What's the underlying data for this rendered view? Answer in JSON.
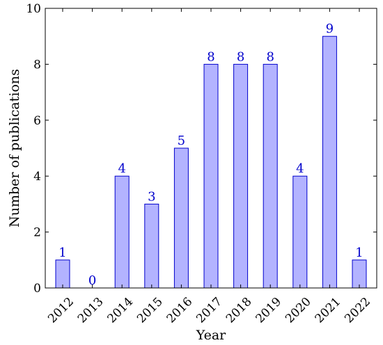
{
  "chart_data": {
    "type": "bar",
    "categories": [
      "2012",
      "2013",
      "2014",
      "2015",
      "2016",
      "2017",
      "2018",
      "2019",
      "2020",
      "2021",
      "2022"
    ],
    "values": [
      1,
      0,
      4,
      3,
      5,
      8,
      8,
      8,
      4,
      9,
      1
    ],
    "xlabel": "Year",
    "ylabel": "Number of publications",
    "ylim": [
      0,
      10
    ],
    "yticks": [
      0,
      2,
      4,
      6,
      8,
      10
    ],
    "grid": false,
    "show_value_labels": true
  },
  "colors": {
    "bar_fill": "#b3b3ff",
    "bar_stroke": "#0000cc",
    "label": "#0000cc",
    "axis": "#000000"
  }
}
